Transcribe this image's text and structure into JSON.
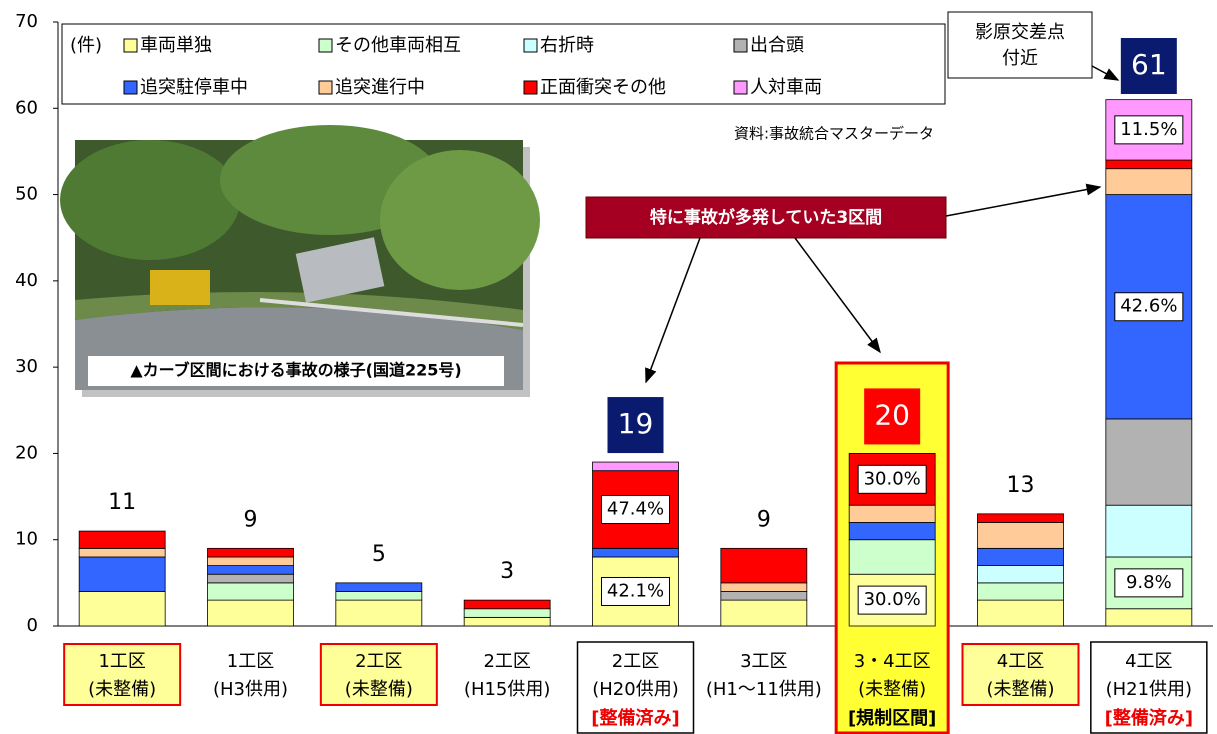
{
  "chart_data": {
    "type": "stacked_bar",
    "unit_label": "(件)",
    "source": "資料:事故統合マスターデータ",
    "callout": "特に事故が多発していた3区間",
    "location_note": [
      "影原交差点",
      "付近"
    ],
    "photo_caption": "▲カーブ区間における事故の様子(国道225号)",
    "categories": [
      [
        "1工区",
        "(未整備)"
      ],
      [
        "1工区",
        "(H3供用)"
      ],
      [
        "2工区",
        "(未整備)"
      ],
      [
        "2工区",
        "(H15供用)"
      ],
      [
        "2工区",
        "(H20供用)"
      ],
      [
        "3工区",
        "(H1～11供用)"
      ],
      [
        "3・4工区",
        "(未整備)"
      ],
      [
        "4工区",
        "(未整備)"
      ],
      [
        "4工区",
        "(H21供用)"
      ]
    ],
    "category_notes": [
      null,
      null,
      null,
      null,
      "[整備済み]",
      null,
      "[規制区間]",
      null,
      "[整備済み]"
    ],
    "category_box": [
      "yellow",
      "plain",
      "yellow",
      "plain",
      "outline",
      "plain",
      "highlight",
      "yellow",
      "outline"
    ],
    "series": [
      {
        "name": "車両単独",
        "color": "#ffff99",
        "values": [
          4,
          3,
          3,
          1,
          8,
          3,
          6,
          3,
          2
        ]
      },
      {
        "name": "その他車両相互",
        "color": "#ccffcc",
        "values": [
          0,
          2,
          1,
          1,
          0,
          0,
          4,
          2,
          6
        ]
      },
      {
        "name": "右折時",
        "color": "#ccffff",
        "values": [
          0,
          0,
          0,
          0,
          0,
          0,
          0,
          2,
          6
        ]
      },
      {
        "name": "出合頭",
        "color": "#b2b2b2",
        "values": [
          0,
          1,
          0,
          0,
          0,
          1,
          0,
          0,
          10
        ]
      },
      {
        "name": "追突駐停車中",
        "color": "#3366ff",
        "values": [
          4,
          1,
          1,
          0,
          1,
          0,
          2,
          2,
          26
        ]
      },
      {
        "name": "追突進行中",
        "color": "#ffcc99",
        "values": [
          1,
          1,
          0,
          0,
          0,
          1,
          2,
          3,
          3
        ]
      },
      {
        "name": "正面衝突その他",
        "color": "#ff0000",
        "values": [
          2,
          1,
          0,
          1,
          9,
          4,
          6,
          1,
          1
        ]
      },
      {
        "name": "人対車両",
        "color": "#ff99ff",
        "values": [
          0,
          0,
          0,
          0,
          1,
          0,
          0,
          0,
          7
        ]
      }
    ],
    "totals": [
      11,
      9,
      5,
      3,
      19,
      9,
      20,
      13,
      61
    ],
    "total_box": [
      null,
      null,
      null,
      null,
      "#0a1a6e",
      null,
      "#ff0000",
      null,
      "#0a1a6e"
    ],
    "annotations": [
      {
        "label": "42.1%",
        "category": 4,
        "series": 0
      },
      {
        "label": "47.4%",
        "category": 4,
        "series": 6
      },
      {
        "label": "30.0%",
        "category": 6,
        "series": 0
      },
      {
        "label": "30.0%",
        "category": 6,
        "series": 6
      },
      {
        "label": "9.8%",
        "category": 8,
        "series": 1
      },
      {
        "label": "42.6%",
        "category": 8,
        "series": 4
      },
      {
        "label": "11.5%",
        "category": 8,
        "series": 7
      }
    ],
    "ylim": [
      0,
      70
    ],
    "yticks": [
      0,
      10,
      20,
      30,
      40,
      50,
      60,
      70
    ]
  }
}
